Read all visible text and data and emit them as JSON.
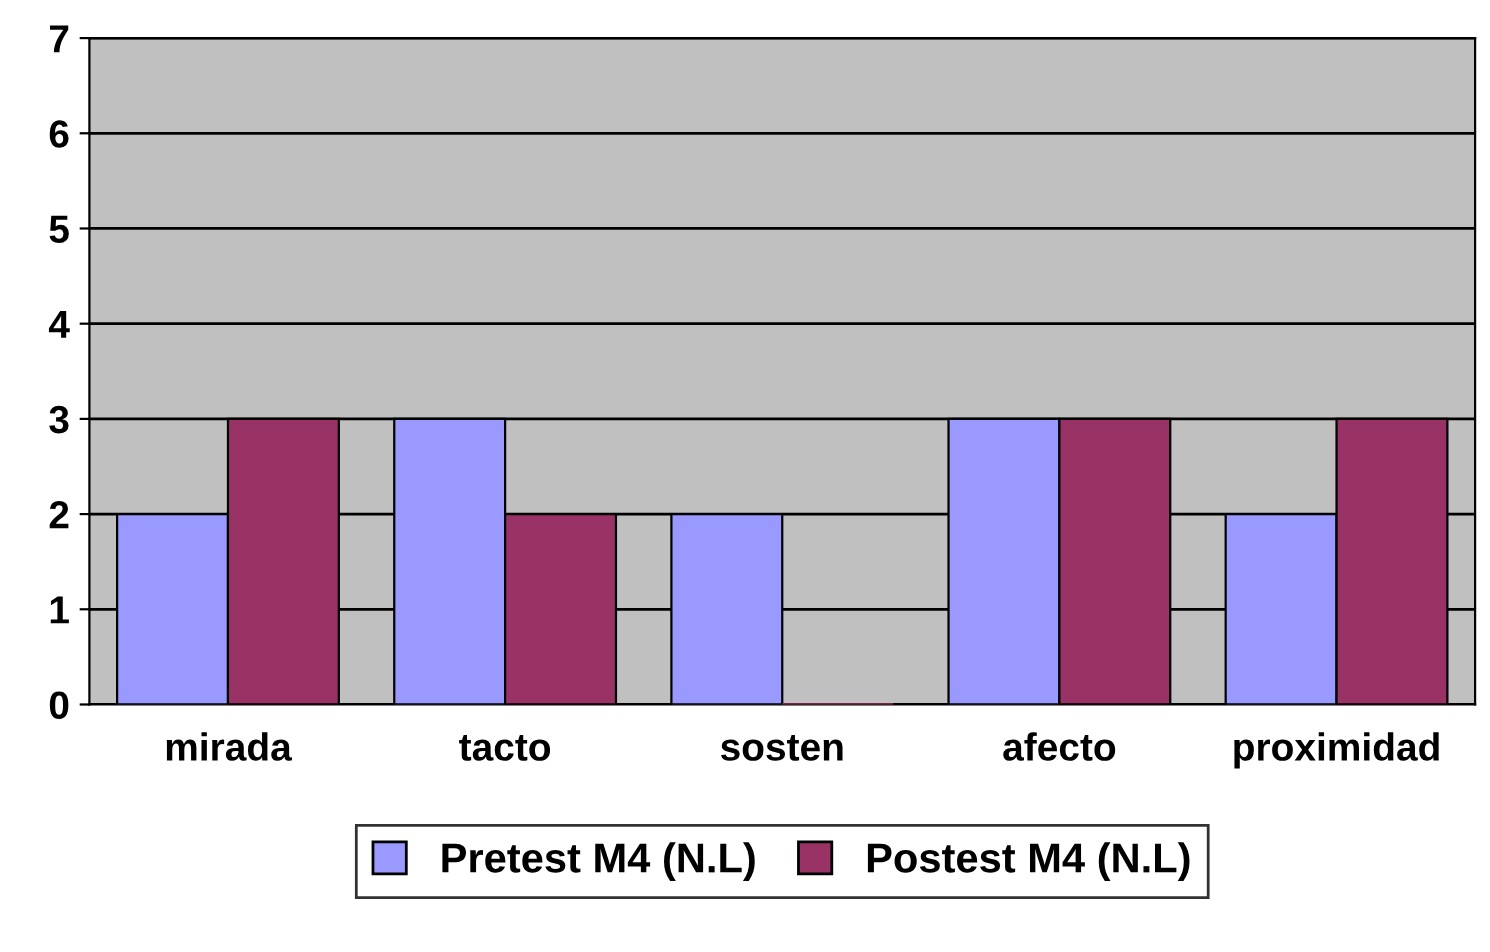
{
  "chart_data": {
    "type": "bar",
    "categories": [
      "mirada",
      "tacto",
      "sosten",
      "afecto",
      "proximidad"
    ],
    "series": [
      {
        "name": "Pretest M4 (N.L)",
        "color": "#9999ff",
        "values": [
          2,
          3,
          2,
          3,
          2
        ]
      },
      {
        "name": "Postest M4 (N.L)",
        "color": "#993366",
        "values": [
          3,
          2,
          0,
          3,
          3
        ]
      }
    ],
    "ylim": [
      0,
      7
    ],
    "yticks": [
      0,
      1,
      2,
      3,
      4,
      5,
      6,
      7
    ],
    "grid": "y",
    "legend": "bottom"
  }
}
